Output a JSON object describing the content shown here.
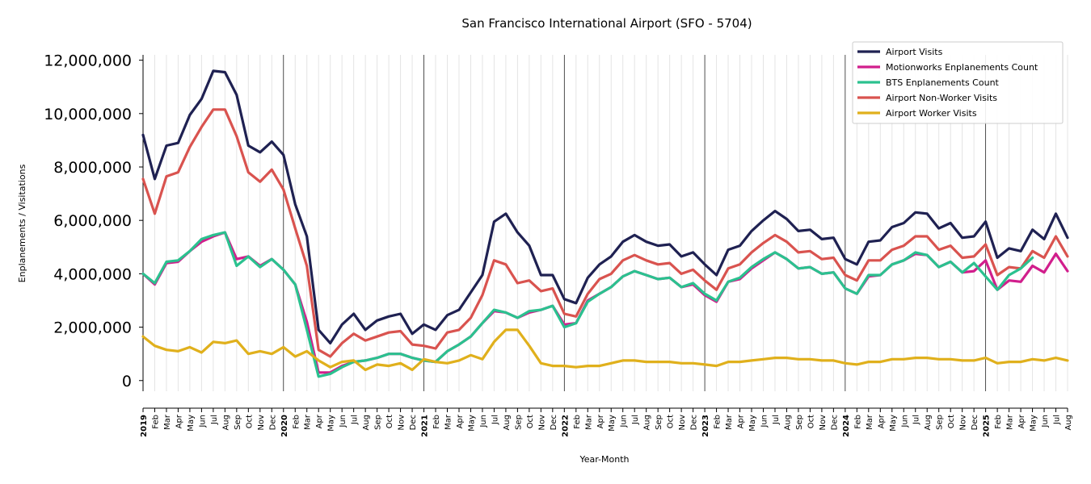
{
  "chart_data": {
    "type": "line",
    "title": "San Francisco International Airport (SFO - 5704)",
    "xlabel": "Year-Month",
    "ylabel": "Enplanements / Visitations",
    "ylim": [
      -400000,
      12200000
    ],
    "yticks": [
      0,
      2000000,
      4000000,
      6000000,
      8000000,
      10000000,
      12000000
    ],
    "ytick_labels": [
      "0",
      "2,000,000",
      "4,000,000",
      "6,000,000",
      "8,000,000",
      "10,000,000",
      "12,000,000"
    ],
    "grid": "vertical lines each month; darker line at each January",
    "legend_position": "top-right",
    "x": [
      "2019",
      "Feb",
      "Mar",
      "Apr",
      "May",
      "Jun",
      "Jul",
      "Aug",
      "Sep",
      "Oct",
      "Nov",
      "Dec",
      "2020",
      "Feb",
      "Mar",
      "Apr",
      "May",
      "Jun",
      "Jul",
      "Aug",
      "Sep",
      "Oct",
      "Nov",
      "Dec",
      "2021",
      "Feb",
      "Mar",
      "Apr",
      "May",
      "Jun",
      "Jul",
      "Aug",
      "Sep",
      "Oct",
      "Nov",
      "Dec",
      "2022",
      "Feb",
      "Mar",
      "Apr",
      "May",
      "Jun",
      "Jul",
      "Aug",
      "Sep",
      "Oct",
      "Nov",
      "Dec",
      "2023",
      "Feb",
      "Mar",
      "Apr",
      "May",
      "Jun",
      "Jul",
      "Aug",
      "Sep",
      "Oct",
      "Nov",
      "Dec",
      "2024",
      "Feb",
      "Mar",
      "Apr",
      "May",
      "Jun",
      "Jul",
      "Aug",
      "Sep",
      "Oct",
      "Nov",
      "Dec",
      "2025",
      "Feb",
      "Mar",
      "Apr",
      "May",
      "Jun",
      "Jul",
      "Aug"
    ],
    "series": [
      {
        "name": "Airport Visits",
        "color": "#1f2152",
        "values": [
          9200000,
          7550000,
          8800000,
          8900000,
          9950000,
          10550000,
          11600000,
          11550000,
          10700000,
          8800000,
          8550000,
          8950000,
          8450000,
          6600000,
          5400000,
          1900000,
          1400000,
          2100000,
          2500000,
          1900000,
          2250000,
          2400000,
          2500000,
          1750000,
          2100000,
          1900000,
          2450000,
          2650000,
          3300000,
          3950000,
          5950000,
          6250000,
          5550000,
          5050000,
          3950000,
          3950000,
          3050000,
          2900000,
          3850000,
          4350000,
          4650000,
          5200000,
          5450000,
          5200000,
          5050000,
          5100000,
          4650000,
          4800000,
          4350000,
          3950000,
          4900000,
          5050000,
          5600000,
          6000000,
          6350000,
          6050000,
          5600000,
          5650000,
          5300000,
          5350000,
          4550000,
          4350000,
          5200000,
          5250000,
          5750000,
          5900000,
          6300000,
          6250000,
          5700000,
          5900000,
          5350000,
          5400000,
          5950000,
          4600000,
          4950000,
          4850000,
          5650000,
          5300000,
          6250000,
          5350000
        ]
      },
      {
        "name": "Motionworks Enplanements Count",
        "color": "#d11e8c",
        "values": [
          4000000,
          3600000,
          4400000,
          4450000,
          4850000,
          5200000,
          5400000,
          5550000,
          4550000,
          4650000,
          4300000,
          4550000,
          4150000,
          3600000,
          2200000,
          300000,
          300000,
          550000,
          700000,
          750000,
          850000,
          1000000,
          1000000,
          850000,
          750000,
          700000,
          1100000,
          1350000,
          1650000,
          2150000,
          2600000,
          2550000,
          2350000,
          2550000,
          2650000,
          2800000,
          2100000,
          2150000,
          3000000,
          3250000,
          3500000,
          3900000,
          4100000,
          3950000,
          3800000,
          3850000,
          3500000,
          3600000,
          3200000,
          2950000,
          3700000,
          3800000,
          4200000,
          4500000,
          4800000,
          4550000,
          4200000,
          4250000,
          4000000,
          4050000,
          3450000,
          3250000,
          3900000,
          3950000,
          4350000,
          4500000,
          4750000,
          4700000,
          4250000,
          4450000,
          4050000,
          4100000,
          4500000,
          3400000,
          3750000,
          3700000,
          4300000,
          4050000,
          4750000,
          4100000
        ]
      },
      {
        "name": "BTS Enplanements Count",
        "color": "#2bc18f",
        "values": [
          4000000,
          3650000,
          4450000,
          4500000,
          4850000,
          5300000,
          5450000,
          5550000,
          4300000,
          4650000,
          4250000,
          4550000,
          4150000,
          3600000,
          1900000,
          150000,
          250000,
          500000,
          700000,
          750000,
          850000,
          1000000,
          1000000,
          850000,
          750000,
          700000,
          1100000,
          1350000,
          1650000,
          2150000,
          2650000,
          2550000,
          2350000,
          2600000,
          2650000,
          2800000,
          2000000,
          2150000,
          2950000,
          3250000,
          3500000,
          3900000,
          4100000,
          3950000,
          3800000,
          3850000,
          3500000,
          3650000,
          3250000,
          3000000,
          3700000,
          3850000,
          4250000,
          4550000,
          4800000,
          4550000,
          4200000,
          4250000,
          4000000,
          4050000,
          3450000,
          3250000,
          3950000,
          3950000,
          4350000,
          4500000,
          4800000,
          4700000,
          4250000,
          4450000,
          4050000,
          4400000,
          3900000,
          3400000,
          3950000,
          4200000,
          4600000,
          null,
          null,
          null
        ]
      },
      {
        "name": "Airport Non-Worker Visits",
        "color": "#d9534f",
        "values": [
          7550000,
          6250000,
          7650000,
          7800000,
          8750000,
          9500000,
          10150000,
          10150000,
          9150000,
          7800000,
          7450000,
          7900000,
          7150000,
          5700000,
          4300000,
          1150000,
          900000,
          1400000,
          1750000,
          1500000,
          1650000,
          1800000,
          1850000,
          1350000,
          1300000,
          1200000,
          1800000,
          1900000,
          2350000,
          3200000,
          4500000,
          4350000,
          3650000,
          3750000,
          3350000,
          3450000,
          2500000,
          2400000,
          3250000,
          3800000,
          4000000,
          4500000,
          4700000,
          4500000,
          4350000,
          4400000,
          4000000,
          4150000,
          3750000,
          3400000,
          4200000,
          4350000,
          4800000,
          5150000,
          5450000,
          5200000,
          4800000,
          4850000,
          4550000,
          4600000,
          3950000,
          3750000,
          4500000,
          4500000,
          4900000,
          5050000,
          5400000,
          5400000,
          4900000,
          5050000,
          4600000,
          4650000,
          5100000,
          3950000,
          4250000,
          4200000,
          4850000,
          4600000,
          5400000,
          4650000
        ]
      },
      {
        "name": "Airport Worker Visits",
        "color": "#e0b01c",
        "values": [
          1650000,
          1300000,
          1150000,
          1100000,
          1250000,
          1050000,
          1450000,
          1400000,
          1500000,
          1000000,
          1100000,
          1000000,
          1250000,
          900000,
          1100000,
          750000,
          500000,
          700000,
          750000,
          400000,
          600000,
          550000,
          650000,
          400000,
          800000,
          700000,
          650000,
          750000,
          950000,
          800000,
          1450000,
          1900000,
          1900000,
          1300000,
          650000,
          550000,
          550000,
          500000,
          550000,
          550000,
          650000,
          750000,
          750000,
          700000,
          700000,
          700000,
          650000,
          650000,
          600000,
          550000,
          700000,
          700000,
          750000,
          800000,
          850000,
          850000,
          800000,
          800000,
          750000,
          750000,
          650000,
          600000,
          700000,
          700000,
          800000,
          800000,
          850000,
          850000,
          800000,
          800000,
          750000,
          750000,
          850000,
          650000,
          700000,
          700000,
          800000,
          750000,
          850000,
          750000
        ]
      }
    ]
  }
}
